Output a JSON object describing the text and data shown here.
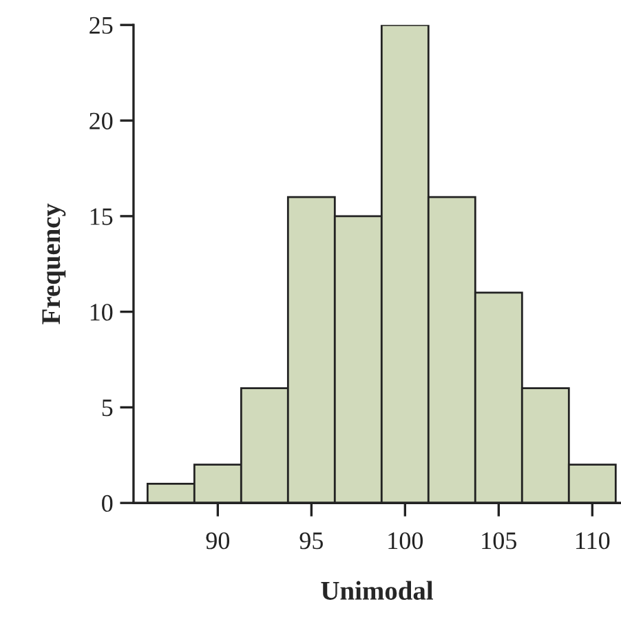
{
  "chart_data": {
    "type": "histogram",
    "xlabel": "Unimodal",
    "ylabel": "Frequency",
    "bins": [
      86.25,
      88.75,
      91.25,
      93.75,
      96.25,
      98.75,
      101.25,
      103.75,
      106.25,
      108.75,
      111.25
    ],
    "values": [
      1,
      2,
      6,
      16,
      15,
      25,
      16,
      11,
      6,
      2
    ],
    "color": "#d1dabb",
    "xlim": [
      85.5,
      111.5
    ],
    "xticks": [
      90,
      95,
      100,
      105,
      110
    ],
    "ylim": [
      0,
      25
    ],
    "yticks": [
      0,
      5,
      10,
      15,
      20,
      25
    ],
    "grid": false,
    "legend": false
  }
}
